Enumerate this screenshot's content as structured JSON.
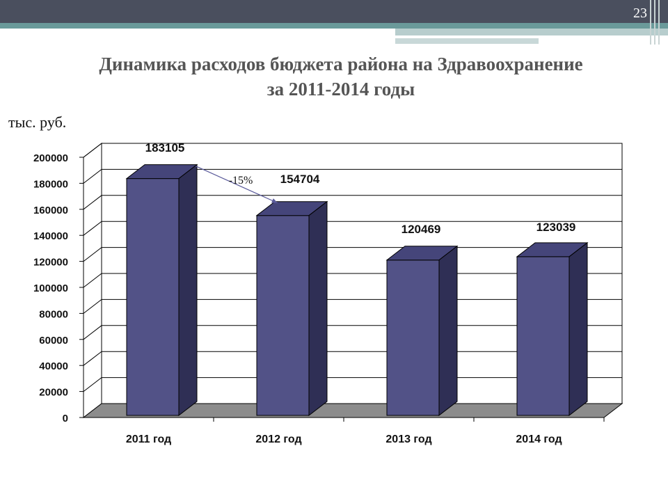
{
  "slide_number": "23",
  "title_line1": "Динамика расходов бюджета района на Здравоохранение",
  "title_line2": "за 2011-2014 годы",
  "unit_label": "тыс. руб.",
  "chart_data": {
    "type": "bar",
    "categories": [
      "2011 год",
      "2012 год",
      "2013 год",
      "2014 год"
    ],
    "values": [
      183105,
      154704,
      120469,
      123039
    ],
    "data_labels": [
      "183105",
      "154704",
      "120469",
      "123039"
    ],
    "y_ticks": [
      "0",
      "20000",
      "40000",
      "60000",
      "80000",
      "100000",
      "120000",
      "140000",
      "160000",
      "180000",
      "200000"
    ],
    "ylim": [
      0,
      200000
    ],
    "grid": true,
    "bar_style": "3d",
    "annotation": "-15%",
    "colors": {
      "bar_front": "#525287",
      "bar_top": "#45457a",
      "bar_side": "#2f2f55",
      "floor": "#8c8c8c"
    }
  }
}
